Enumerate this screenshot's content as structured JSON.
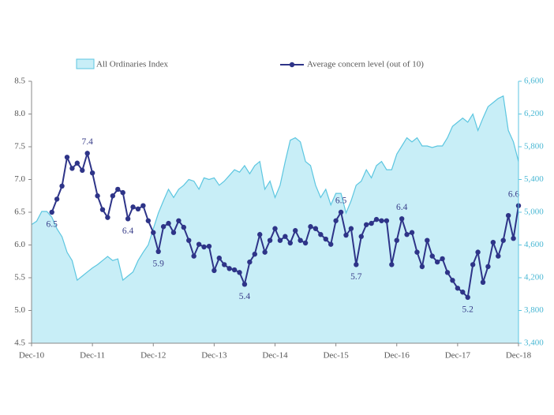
{
  "chart_data": {
    "type": "line",
    "categories": [
      "Dec-10",
      null,
      null,
      null,
      null,
      null,
      null,
      null,
      null,
      null,
      null,
      null,
      "Dec-11",
      null,
      null,
      null,
      null,
      null,
      null,
      null,
      null,
      null,
      null,
      null,
      "Dec-12",
      null,
      null,
      null,
      null,
      null,
      null,
      null,
      null,
      null,
      null,
      null,
      "Dec-13",
      null,
      null,
      null,
      null,
      null,
      null,
      null,
      null,
      null,
      null,
      null,
      "Dec-14",
      null,
      null,
      null,
      null,
      null,
      null,
      null,
      null,
      null,
      null,
      null,
      "Dec-15",
      null,
      null,
      null,
      null,
      null,
      null,
      null,
      null,
      null,
      null,
      null,
      "Dec-16",
      null,
      null,
      null,
      null,
      null,
      null,
      null,
      null,
      null,
      null,
      null,
      "Dec-17",
      null,
      null,
      null,
      null,
      null,
      null,
      null,
      null,
      null,
      null,
      null,
      "Dec-18"
    ],
    "series": [
      {
        "name": "All Ordinaries Index",
        "type": "area",
        "axis": "y2",
        "color": "#c8eef7",
        "line_color": "#5cc6e0",
        "values": [
          4850,
          4890,
          5010,
          5010,
          4940,
          4800,
          4700,
          4510,
          4410,
          4170,
          4220,
          4270,
          4320,
          4360,
          4410,
          4460,
          4410,
          4430,
          4170,
          4220,
          4270,
          4410,
          4510,
          4600,
          4800,
          4990,
          5140,
          5280,
          5180,
          5280,
          5330,
          5400,
          5380,
          5280,
          5420,
          5400,
          5420,
          5330,
          5380,
          5450,
          5520,
          5490,
          5570,
          5470,
          5570,
          5620,
          5280,
          5380,
          5180,
          5330,
          5620,
          5880,
          5910,
          5860,
          5620,
          5570,
          5330,
          5180,
          5280,
          5090,
          5230,
          5230,
          4990,
          5140,
          5330,
          5380,
          5520,
          5420,
          5570,
          5620,
          5520,
          5520,
          5710,
          5810,
          5910,
          5860,
          5910,
          5810,
          5810,
          5790,
          5810,
          5810,
          5910,
          6050,
          6100,
          6150,
          6100,
          6200,
          6000,
          6150,
          6290,
          6340,
          6390,
          6420,
          6000,
          5860,
          5620
        ]
      },
      {
        "name": "Average concern level (out of 10)",
        "type": "line",
        "color": "#2e3488",
        "values": [
          null,
          null,
          null,
          null,
          6.5,
          6.7,
          6.9,
          7.34,
          7.17,
          7.25,
          7.14,
          7.4,
          7.1,
          6.75,
          6.54,
          6.42,
          6.75,
          6.85,
          6.8,
          6.4,
          6.58,
          6.55,
          6.6,
          6.37,
          6.19,
          5.9,
          6.28,
          6.33,
          6.19,
          6.37,
          6.27,
          6.07,
          5.83,
          6.01,
          5.97,
          5.98,
          5.61,
          5.8,
          5.7,
          5.64,
          5.62,
          5.58,
          5.4,
          5.74,
          5.86,
          6.16,
          5.89,
          6.07,
          6.25,
          6.07,
          6.13,
          6.03,
          6.22,
          6.07,
          6.03,
          6.28,
          6.25,
          6.16,
          6.09,
          6.01,
          6.37,
          6.5,
          6.15,
          6.25,
          5.7,
          6.13,
          6.31,
          6.33,
          6.39,
          6.37,
          6.37,
          5.7,
          6.07,
          6.4,
          6.16,
          6.19,
          5.89,
          5.67,
          6.07,
          5.83,
          5.74,
          5.79,
          5.58,
          5.46,
          5.34,
          5.28,
          5.2,
          5.7,
          5.89,
          5.43,
          5.67,
          6.04,
          5.83,
          6.07,
          6.45,
          6.1,
          6.6
        ],
        "value_labels": [
          null,
          null,
          null,
          null,
          "6.5",
          null,
          null,
          null,
          null,
          null,
          null,
          "7.4",
          null,
          null,
          null,
          null,
          null,
          null,
          null,
          "6.4",
          null,
          null,
          null,
          null,
          null,
          "5.9",
          null,
          null,
          null,
          null,
          null,
          null,
          null,
          null,
          null,
          null,
          null,
          null,
          null,
          null,
          null,
          null,
          "5.4",
          null,
          null,
          null,
          null,
          null,
          null,
          null,
          null,
          null,
          null,
          null,
          null,
          null,
          null,
          null,
          null,
          null,
          null,
          "6.5",
          null,
          null,
          "5.7",
          null,
          null,
          null,
          null,
          null,
          null,
          null,
          null,
          "6.4",
          null,
          null,
          null,
          null,
          null,
          null,
          null,
          null,
          null,
          null,
          null,
          null,
          "5.2",
          null,
          null,
          null,
          null,
          null,
          null,
          null,
          null,
          null,
          "6.6"
        ]
      }
    ],
    "ylim": [
      4.5,
      8.5
    ],
    "yticks": [
      4.5,
      {
        "value": 5,
        "label": "5.0"
      },
      5.5,
      {
        "value": 6,
        "label": "6.0"
      },
      6.5,
      {
        "value": 7,
        "label": "7.0"
      },
      7.5,
      {
        "value": 8,
        "label": "8.0"
      },
      8.5
    ],
    "y2lim": [
      3400,
      6600
    ],
    "y2ticks": [
      {
        "value": 3400,
        "label": "3,400"
      },
      {
        "value": 3800,
        "label": "3,800"
      },
      {
        "value": 4200,
        "label": "4,200"
      },
      {
        "value": 4600,
        "label": "4,600"
      },
      {
        "value": 5000,
        "label": "5,000"
      },
      {
        "value": 5400,
        "label": "5,400"
      },
      {
        "value": 5800,
        "label": "5,800"
      },
      {
        "value": 6200,
        "label": "6,200"
      },
      {
        "value": 6600,
        "label": "6,600"
      }
    ],
    "legend": "top"
  }
}
